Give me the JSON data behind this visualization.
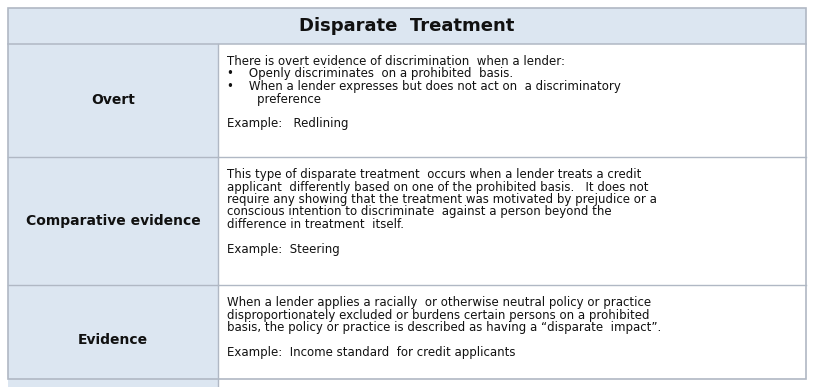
{
  "title": "Disparate  Treatment",
  "title_bg": "#dce6f1",
  "left_bg": "#dce6f1",
  "right_bg": "#ffffff",
  "border_color": "#b0b8c4",
  "title_fontsize": 13,
  "label_fontsize": 10,
  "text_fontsize": 8.5,
  "fig_w": 8.14,
  "fig_h": 3.87,
  "dpi": 100,
  "rows": [
    {
      "label": "Overt",
      "content_lines": [
        "There is overt evidence of discrimination  when a lender:",
        "•    Openly discriminates  on a prohibited  basis.",
        "•    When a lender expresses but does not act on  a discriminatory",
        "        preference",
        "",
        "Example:   Redlining"
      ]
    },
    {
      "label": "Comparative evidence",
      "content_lines": [
        "This type of disparate treatment  occurs when a lender treats a credit",
        "applicant  differently based on one of the prohibited basis.   It does not",
        "require any showing that the treatment was motivated by prejudice or a",
        "conscious intention to discriminate  against a person beyond the",
        "difference in treatment  itself.",
        "",
        "Example:  Steering"
      ]
    },
    {
      "label": "Evidence",
      "content_lines": [
        "When a lender applies a racially  or otherwise neutral policy or practice",
        "disproportionately excluded or burdens certain persons on a prohibited",
        "basis, the policy or practice is described as having a “disparate  impact”.",
        "",
        "Example:  Income standard  for credit applicants"
      ]
    }
  ]
}
